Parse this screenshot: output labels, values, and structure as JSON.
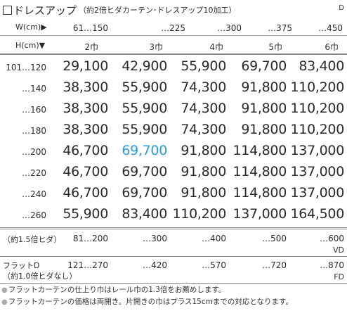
{
  "title": {
    "main": "ドレスアップ",
    "sub": "（約2倍ヒダカーテン･ドレスアップ10加工）",
    "code": "D"
  },
  "width_header": {
    "label": "W(cm)▶",
    "values": [
      "61…150",
      "…225",
      "…300",
      "…375",
      "…450"
    ]
  },
  "height_header": {
    "label": "H(cm)▼",
    "widths": [
      "2巾",
      "3巾",
      "4巾",
      "5巾",
      "6巾"
    ]
  },
  "rows": [
    {
      "label": "101…120",
      "prices": [
        "29,100",
        "42,900",
        "55,900",
        "69,700",
        "83,400"
      ]
    },
    {
      "label": "…140",
      "prices": [
        "38,300",
        "55,900",
        "74,300",
        "91,800",
        "110,200"
      ]
    },
    {
      "label": "…160",
      "prices": [
        "38,300",
        "55,900",
        "74,300",
        "91,800",
        "110,200"
      ]
    },
    {
      "label": "…180",
      "prices": [
        "38,300",
        "55,900",
        "74,300",
        "91,800",
        "110,200"
      ]
    },
    {
      "label": "…200",
      "prices": [
        "46,700",
        "69,700",
        "91,800",
        "114,800",
        "137,000"
      ]
    },
    {
      "label": "…220",
      "prices": [
        "46,700",
        "69,700",
        "91,800",
        "114,800",
        "137,000"
      ]
    },
    {
      "label": "…240",
      "prices": [
        "46,700",
        "69,700",
        "91,800",
        "114,800",
        "137,000"
      ]
    },
    {
      "label": "…260",
      "prices": [
        "55,900",
        "83,400",
        "110,200",
        "137,000",
        "164,500"
      ]
    }
  ],
  "highlight": {
    "row": 4,
    "col": 1,
    "color": "#2a9be0"
  },
  "vd_row": {
    "label": "（約1.5倍ヒダ）",
    "values": [
      "81…200",
      "…300",
      "…400",
      "…500",
      "…600"
    ],
    "code": "VD"
  },
  "fd_row": {
    "label_line1": "フラットD",
    "label_line2": "（約1.0倍ヒダなし）",
    "values": [
      "121…270",
      "…420",
      "…570",
      "…720",
      "…870"
    ],
    "code": "FD"
  },
  "notes": [
    "フラットカーテンの仕上り巾はレール巾の1.3倍をお薦めします。",
    "フラットカーテンの価格は両開き。片開きの巾はプラス15cmまでの対応となります。"
  ]
}
